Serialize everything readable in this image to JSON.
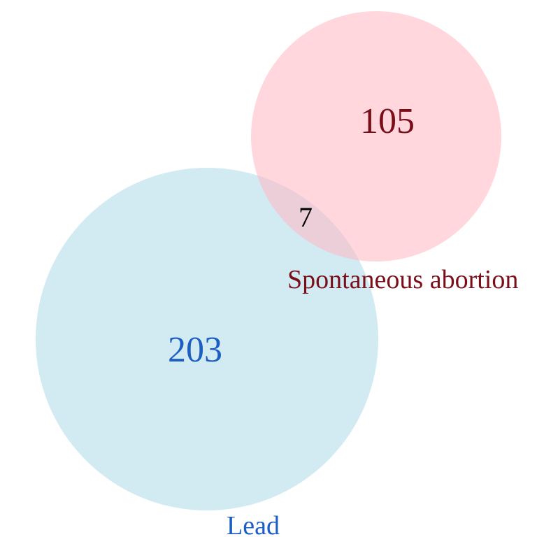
{
  "venn": {
    "sets": [
      {
        "name": "Lead",
        "size": 210,
        "fill_color": "#add8e6",
        "label_color": "#1c5fc4"
      },
      {
        "name": "Spontaneous abortion",
        "size": 112,
        "fill_color": "#ffb6c1",
        "label_color": "#7a0f1a"
      }
    ],
    "regions": {
      "lead_only": "203",
      "spontaneous_abortion_only": "105",
      "intersection": "7"
    },
    "intersection_label_color": "#000000"
  }
}
